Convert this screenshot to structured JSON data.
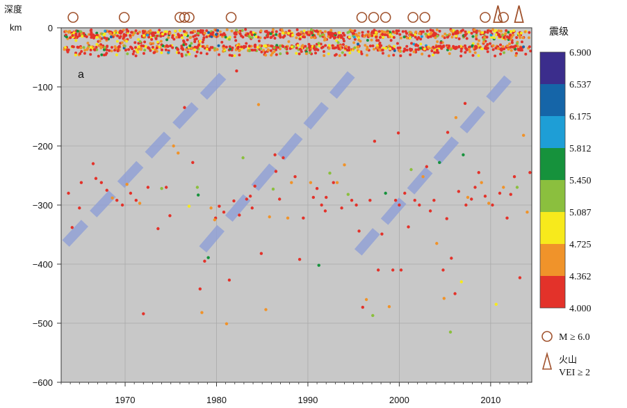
{
  "chart_data": {
    "type": "scatter",
    "title": "",
    "panel_label": "a",
    "ylabel": "深度",
    "yunit": "km",
    "xlabel": "",
    "xlim": [
      1963,
      2014.5
    ],
    "ylim": [
      -600,
      0
    ],
    "x_ticks": [
      1970,
      1980,
      1990,
      2000,
      2010
    ],
    "y_ticks": [
      0,
      -100,
      -200,
      -300,
      -400,
      -500,
      -600
    ],
    "grid": true,
    "colorbar": {
      "title": "震级",
      "labels": [
        "6.900",
        "6.537",
        "6.175",
        "5.812",
        "5.450",
        "5.087",
        "4.725",
        "4.362",
        "4.000"
      ],
      "colors": [
        "#3b2d8c",
        "#1565a8",
        "#1e9ed6",
        "#16923c",
        "#8bbf3e",
        "#f7ea1c",
        "#f0932a",
        "#e3322a"
      ]
    },
    "legend": {
      "position": "bottom-right",
      "entries": [
        {
          "symbol": "circle",
          "label": "M ≥ 6.0"
        },
        {
          "symbol": "triangle",
          "label_line1": "火山",
          "label_line2": "VEI ≥ 2"
        }
      ]
    },
    "large_quakes_M6": [
      1964.3,
      1969.9,
      1976.0,
      1976.5,
      1977.0,
      1981.6,
      1995.9,
      1997.2,
      1998.5,
      2001.5,
      2002.8,
      2009.4,
      2011.4
    ],
    "volcanoes_VEI2": [
      2010.8,
      2013.1
    ],
    "migration_bands": [
      {
        "start": [
          1963.5,
          -365
        ],
        "end": [
          1981.5,
          -68
        ]
      },
      {
        "start": [
          1978.5,
          -375
        ],
        "end": [
          1995.5,
          -65
        ]
      },
      {
        "start": [
          1995.5,
          -380
        ],
        "end": [
          2012.5,
          -75
        ]
      }
    ],
    "series": [
      {
        "name": "deep",
        "points": [
          [
            1963.8,
            -280,
            4.3
          ],
          [
            1964.2,
            -338,
            4.1
          ],
          [
            1965.0,
            -305,
            4.2
          ],
          [
            1965.2,
            -262,
            4.0
          ],
          [
            1966.5,
            -230,
            4.1
          ],
          [
            1966.8,
            -255,
            4.0
          ],
          [
            1967.4,
            -262,
            4.2
          ],
          [
            1968.0,
            -275,
            4.3
          ],
          [
            1968.6,
            -288,
            4.4
          ],
          [
            1969.1,
            -292,
            4.1
          ],
          [
            1969.7,
            -300,
            4.0
          ],
          [
            1970.2,
            -265,
            4.5
          ],
          [
            1970.6,
            -280,
            4.3
          ],
          [
            1971.2,
            -292,
            4.1
          ],
          [
            1971.6,
            -297,
            4.6
          ],
          [
            1972.0,
            -484,
            4.1
          ],
          [
            1973.6,
            -340,
            4.0
          ],
          [
            1974.0,
            -272,
            5.1
          ],
          [
            1974.5,
            -270,
            4.2
          ],
          [
            1974.9,
            -318,
            4.1
          ],
          [
            1975.3,
            -200,
            4.6
          ],
          [
            1975.8,
            -212,
            4.7
          ],
          [
            1976.5,
            -135,
            4.2
          ],
          [
            1977.0,
            -302,
            4.9
          ],
          [
            1977.4,
            -228,
            4.1
          ],
          [
            1977.9,
            -270,
            5.2
          ],
          [
            1978.0,
            -283,
            5.5
          ],
          [
            1978.2,
            -442,
            4.1
          ],
          [
            1978.4,
            -482,
            4.5
          ],
          [
            1978.7,
            -395,
            4.1
          ],
          [
            1979.1,
            -389,
            5.5
          ],
          [
            1979.4,
            -305,
            4.4
          ],
          [
            1979.9,
            -322,
            4.2
          ],
          [
            1980.3,
            -302,
            4.1
          ],
          [
            1980.8,
            -312,
            4.2
          ],
          [
            1981.1,
            -501,
            4.6
          ],
          [
            1981.4,
            -427,
            4.0
          ],
          [
            1981.9,
            -293,
            4.1
          ],
          [
            1982.5,
            -317,
            4.0
          ],
          [
            1982.9,
            -220,
            5.1
          ],
          [
            1983.3,
            -290,
            4.2
          ],
          [
            1983.7,
            -285,
            4.0
          ],
          [
            1984.2,
            -268,
            4.3
          ],
          [
            1984.6,
            -130,
            4.6
          ],
          [
            1984.9,
            -382,
            4.1
          ],
          [
            1985.4,
            -477,
            4.6
          ],
          [
            1985.8,
            -320,
            4.4
          ],
          [
            1986.2,
            -273,
            5.1
          ],
          [
            1986.5,
            -243,
            4.0
          ],
          [
            1986.9,
            -290,
            4.3
          ],
          [
            1987.3,
            -220,
            4.1
          ],
          [
            1987.8,
            -322,
            4.4
          ],
          [
            1988.2,
            -262,
            4.6
          ],
          [
            1988.6,
            -252,
            4.1
          ],
          [
            1989.1,
            -392,
            4.2
          ],
          [
            1989.5,
            -322,
            4.0
          ],
          [
            1990.3,
            -262,
            4.7
          ],
          [
            1990.6,
            -287,
            4.1
          ],
          [
            1991.0,
            -272,
            4.3
          ],
          [
            1991.2,
            -402,
            5.5
          ],
          [
            1991.5,
            -300,
            4.2
          ],
          [
            1991.9,
            -310,
            4.0
          ],
          [
            1992.4,
            -246,
            5.1
          ],
          [
            1992.8,
            -262,
            4.1
          ],
          [
            1993.2,
            -262,
            4.4
          ],
          [
            1993.7,
            -305,
            4.2
          ],
          [
            1994.0,
            -232,
            4.6
          ],
          [
            1994.4,
            -282,
            5.4
          ],
          [
            1994.8,
            -292,
            4.1
          ],
          [
            1995.3,
            -300,
            4.3
          ],
          [
            1995.6,
            -344,
            4.1
          ],
          [
            1996.0,
            -473,
            4.0
          ],
          [
            1996.4,
            -460,
            4.7
          ],
          [
            1996.8,
            -292,
            4.1
          ],
          [
            1997.1,
            -487,
            5.1
          ],
          [
            1997.3,
            -192,
            4.0
          ],
          [
            1997.7,
            -410,
            4.2
          ],
          [
            1998.1,
            -349,
            4.3
          ],
          [
            1998.5,
            -280,
            5.5
          ],
          [
            1998.9,
            -472,
            4.6
          ],
          [
            1999.3,
            -410,
            4.1
          ],
          [
            1999.6,
            -292,
            4.2
          ],
          [
            2000.0,
            -300,
            4.1
          ],
          [
            2000.2,
            -410,
            4.0
          ],
          [
            2000.6,
            -280,
            4.3
          ],
          [
            2001.0,
            -337,
            4.1
          ],
          [
            2001.3,
            -240,
            5.3
          ],
          [
            2001.7,
            -292,
            4.2
          ],
          [
            2002.2,
            -300,
            4.0
          ],
          [
            2002.6,
            -252,
            4.6
          ],
          [
            2003.0,
            -235,
            4.1
          ],
          [
            2003.4,
            -310,
            4.3
          ],
          [
            2003.8,
            -292,
            4.1
          ],
          [
            2004.1,
            -365,
            4.6
          ],
          [
            2004.4,
            -228,
            5.5
          ],
          [
            2004.8,
            -410,
            4.1
          ],
          [
            2004.9,
            -458,
            4.7
          ],
          [
            2005.2,
            -323,
            4.2
          ],
          [
            2005.6,
            -515,
            5.1
          ],
          [
            2005.7,
            -390,
            4.0
          ],
          [
            2006.1,
            -450,
            4.1
          ],
          [
            2006.5,
            -277,
            4.2
          ],
          [
            2006.8,
            -430,
            4.9
          ],
          [
            2007.0,
            -215,
            5.5
          ],
          [
            2007.3,
            -300,
            4.1
          ],
          [
            2007.5,
            -287,
            4.6
          ],
          [
            2007.9,
            -290,
            4.0
          ],
          [
            2008.3,
            -270,
            4.3
          ],
          [
            2008.7,
            -245,
            4.2
          ],
          [
            2009.0,
            -262,
            4.4
          ],
          [
            2009.4,
            -285,
            4.1
          ],
          [
            2009.8,
            -297,
            4.7
          ],
          [
            2010.2,
            -300,
            4.2
          ],
          [
            2010.6,
            -468,
            4.9
          ],
          [
            2011.0,
            -280,
            4.1
          ],
          [
            2011.4,
            -270,
            4.6
          ],
          [
            2011.8,
            -322,
            4.2
          ],
          [
            2012.2,
            -282,
            4.3
          ],
          [
            2012.6,
            -252,
            4.1
          ],
          [
            2012.9,
            -270,
            5.1
          ],
          [
            2013.2,
            -423,
            4.1
          ],
          [
            2013.6,
            -182,
            4.4
          ],
          [
            2014.0,
            -312,
            4.6
          ],
          [
            2014.3,
            -245,
            4.1
          ],
          [
            1972.5,
            -270,
            4.2
          ],
          [
            1979.8,
            -325,
            4.7
          ],
          [
            1983.9,
            -305,
            4.1
          ],
          [
            1986.4,
            -215,
            4.3
          ],
          [
            1992.0,
            -287,
            4.0
          ],
          [
            1999.9,
            -178,
            4.1
          ],
          [
            2005.3,
            -177,
            4.2
          ],
          [
            2006.2,
            -152,
            4.6
          ],
          [
            2007.2,
            -128,
            4.1
          ],
          [
            1982.2,
            -73,
            4.1
          ]
        ]
      }
    ]
  }
}
